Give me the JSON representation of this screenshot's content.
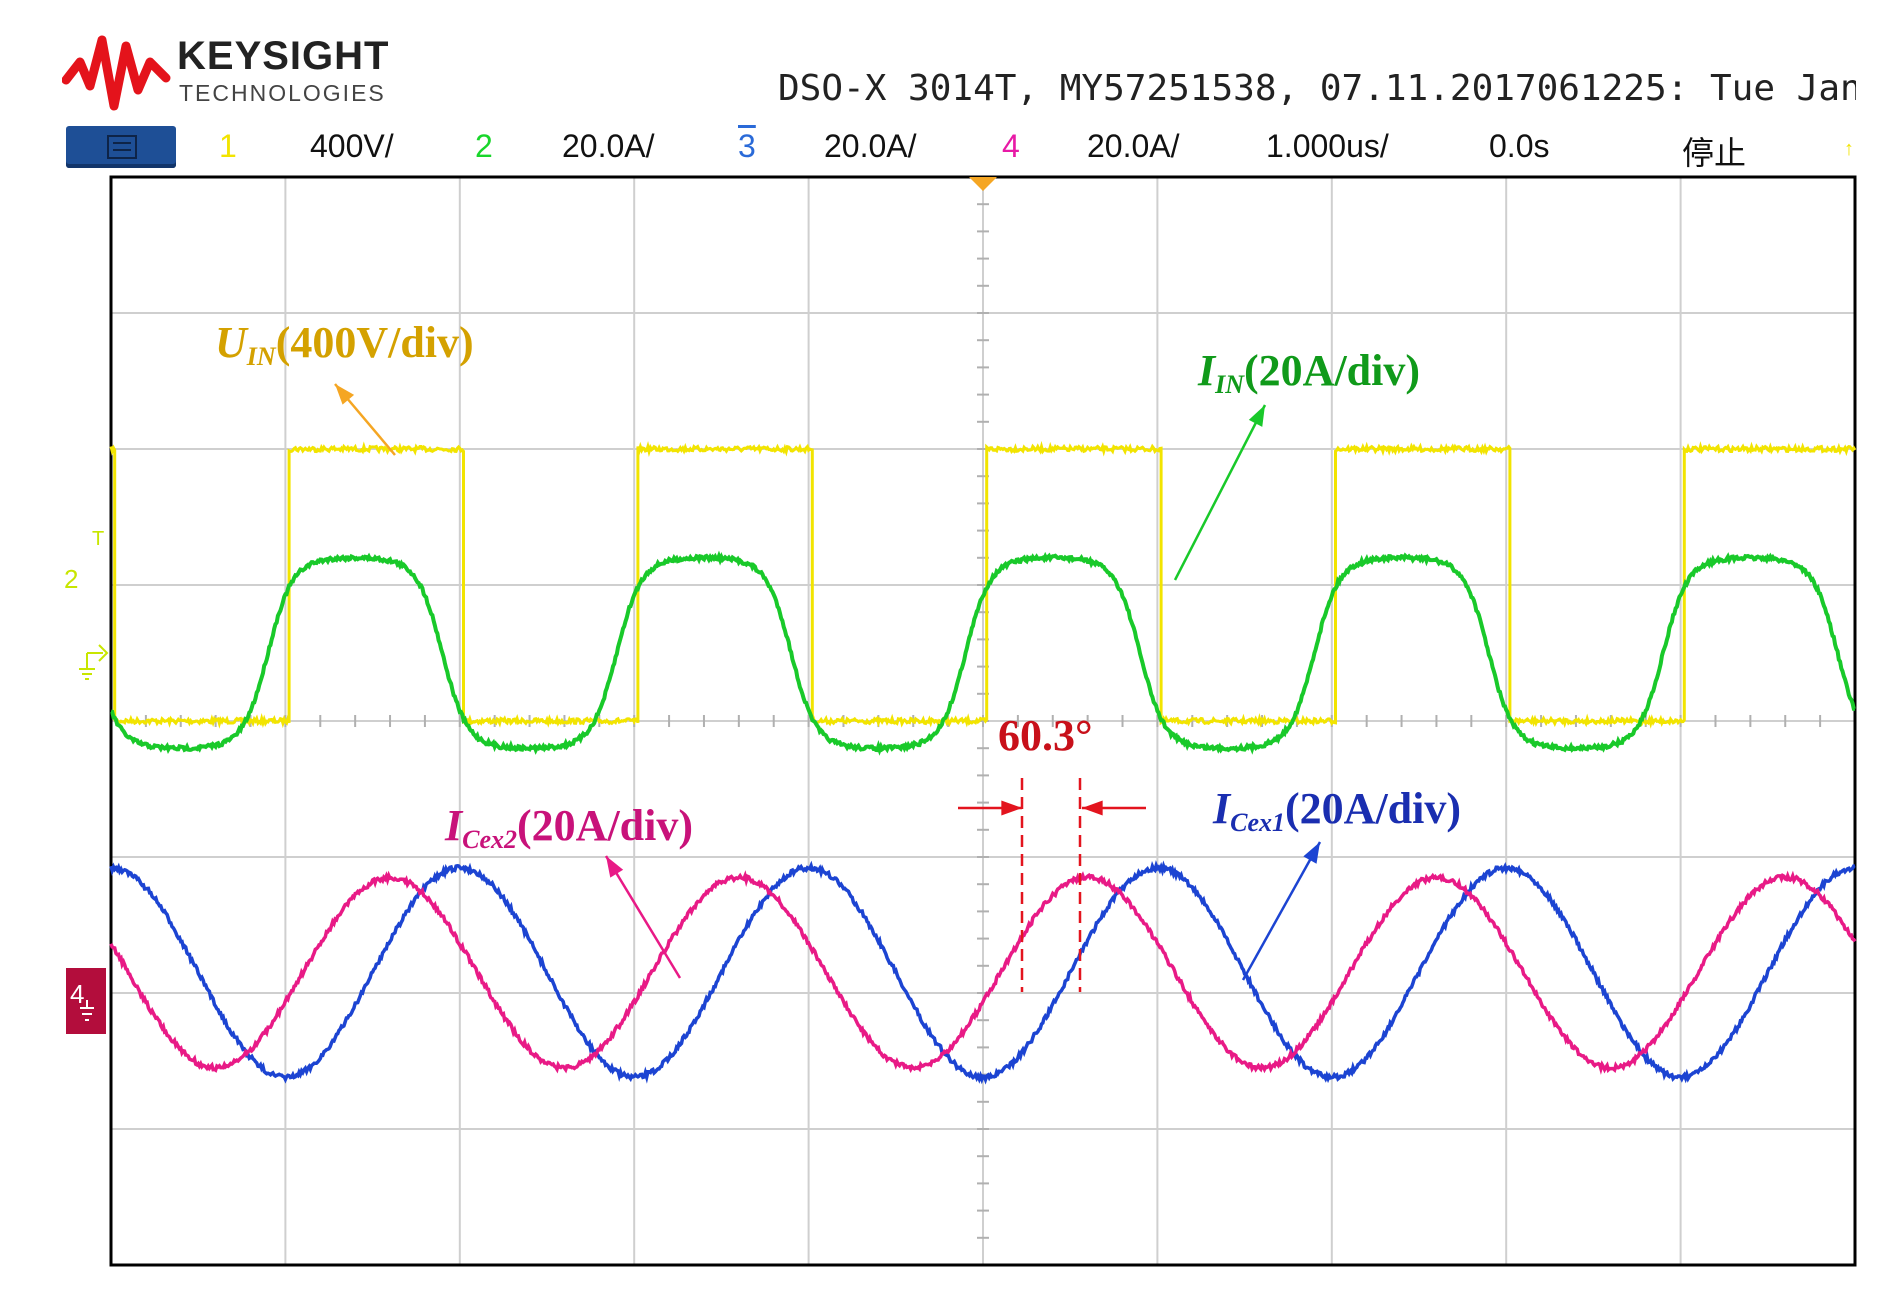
{
  "brand": {
    "name": "KEYSIGHT",
    "sub": "TECHNOLOGIES"
  },
  "header_info": "DSO-X 3014T, MY57251538, 07.11.2017061225: Tue Jan",
  "status_bar": {
    "ch1": {
      "num": "1",
      "scale": "400V/",
      "color": "#f2e400"
    },
    "ch2": {
      "num": "2",
      "scale": "20.0A/",
      "color": "#19d62b"
    },
    "ch3": {
      "num": "3",
      "scale": "20.0A/",
      "color": "#2a6ad8"
    },
    "ch4": {
      "num": "4",
      "scale": "20.0A/",
      "color": "#e81aa6"
    },
    "timebase": "1.000us/",
    "delay": "0.0s",
    "run_state": "停止"
  },
  "ground_markers": {
    "ch2": {
      "label": "2",
      "t": "T"
    },
    "ch4": {
      "label": "4"
    }
  },
  "colors": {
    "uin": "#f2e400",
    "iin": "#19c92a",
    "icex1": "#1c44d2",
    "icex2": "#e81a86",
    "uin_label": "#d4a100",
    "iin_label": "#109a1a",
    "icex1_label": "#1a2eb0",
    "icex2_label": "#c8127a",
    "phase": "#e3141e",
    "grid": "#cfcfcf",
    "trigger": "#f5a623"
  },
  "chart_data": {
    "type": "line",
    "title": "",
    "x_unit": "us",
    "x_range": [
      -5,
      5
    ],
    "x_divisions": 10,
    "y_divisions": 8,
    "y_unit": "div",
    "y_range": [
      -4,
      4
    ],
    "period_us": 2.0,
    "series": [
      {
        "name": "UIN",
        "channel": 1,
        "scale": "400V/div",
        "shape": "square",
        "offset_div": 1.0,
        "amplitude_div": 1.0,
        "rise_times_us": [
          -3.98,
          -1.98,
          0.02,
          2.02,
          4.02
        ],
        "duty": 0.47
      },
      {
        "name": "IIN",
        "channel": 2,
        "scale": "20A/div",
        "shape": "trapezoid",
        "offset_div": 0.5,
        "peak_div": 1.2,
        "trough_div": -0.2,
        "zero_cross_rising_us": [
          -4.1,
          -2.1,
          -0.1,
          1.9,
          3.9
        ]
      },
      {
        "name": "ICex1",
        "channel": 3,
        "scale": "20A/div",
        "shape": "sine",
        "offset_div": -1.85,
        "amplitude_div": 0.77,
        "peak_times_us": [
          -3.0,
          -1.0,
          1.0,
          3.0
        ]
      },
      {
        "name": "ICex2",
        "channel": 4,
        "scale": "20A/div",
        "shape": "sine",
        "offset_div": -1.85,
        "amplitude_div": 0.7,
        "peak_times_us": [
          -3.4,
          -1.4,
          0.6,
          2.6,
          4.6
        ]
      }
    ],
    "annotations": {
      "uin": {
        "main": "U",
        "sub": "IN",
        "rest": "(400V/div)"
      },
      "iin": {
        "main": "I",
        "sub": "IN",
        "rest": "(20A/div)"
      },
      "icex1": {
        "main": "I",
        "sub": "Cex1",
        "rest": "(20A/div)"
      },
      "icex2": {
        "main": "I",
        "sub": "Cex2",
        "rest": "(20A/div)"
      },
      "phase": "60.3°"
    }
  }
}
